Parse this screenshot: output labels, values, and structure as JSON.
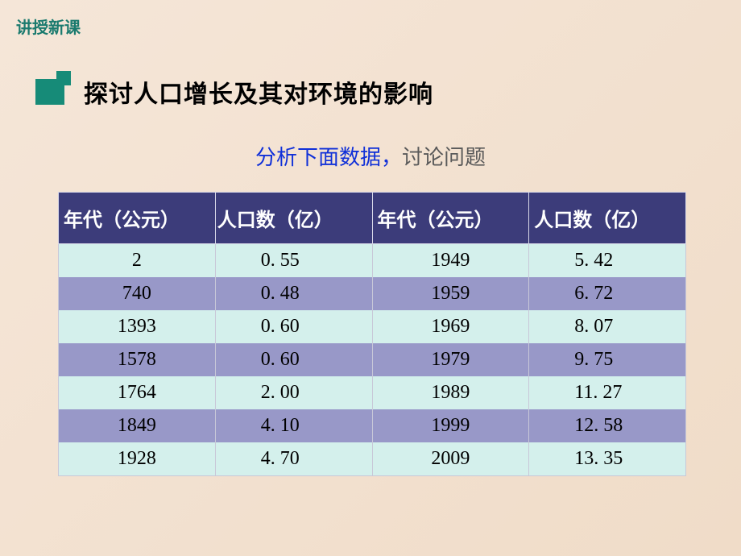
{
  "header": {
    "label": "讲授新课"
  },
  "section": {
    "title": "探讨人口增长及其对环境的影响"
  },
  "subtitle": {
    "part1": "分析下面数据",
    "comma": "，",
    "part2": "讨论问题"
  },
  "table": {
    "columns": [
      "年代（公元）",
      "人口数（亿）",
      "年代（公元）",
      "人口数（亿）"
    ],
    "rows": [
      [
        "2",
        "0. 55",
        "1949",
        "5. 42"
      ],
      [
        "740",
        "0. 48",
        "1959",
        "6. 72"
      ],
      [
        "1393",
        "0. 60",
        "1969",
        "8. 07"
      ],
      [
        "1578",
        "0. 60",
        "1979",
        "9. 75"
      ],
      [
        "1764",
        "2. 00",
        "1989",
        "11. 27"
      ],
      [
        "1849",
        "4. 10",
        "1999",
        "12. 58"
      ],
      [
        "1928",
        "4. 70",
        "2009",
        "13. 35"
      ]
    ],
    "header_bg": "#3c3c7a",
    "header_color": "#ffffff",
    "row_odd_bg": "#d4f0ec",
    "row_even_bg": "#9898c8",
    "border_color": "#c8c8d8",
    "font_size": 24
  },
  "colors": {
    "background_gradient_start": "#f5e6d8",
    "background_gradient_end": "#f0dcc8",
    "header_label": "#1a7a6e",
    "icon": "#168b78",
    "section_title": "#000000",
    "subtitle_blue": "#1030d8",
    "subtitle_gray": "#5a5a5a"
  }
}
